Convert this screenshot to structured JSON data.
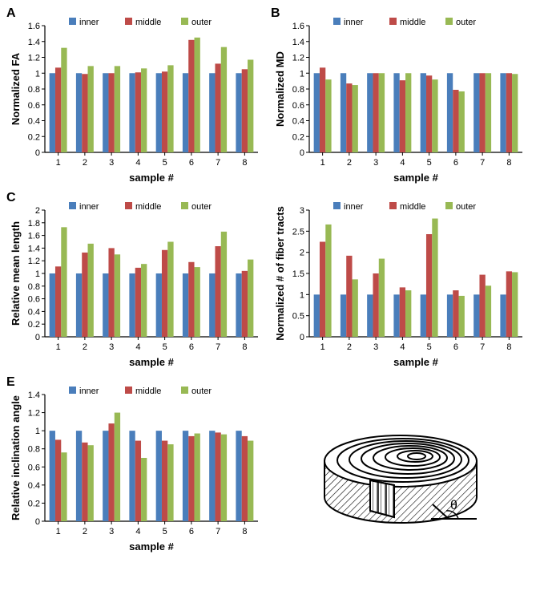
{
  "colors": {
    "inner": "#4a7ebb",
    "middle": "#be4b48",
    "outer": "#98b954",
    "axis": "#000000",
    "bg": "#ffffff"
  },
  "legend_labels": [
    "inner",
    "middle",
    "outer"
  ],
  "xlabel": "sample #",
  "bar_width": 0.22,
  "charts": {
    "A": {
      "label": "A",
      "ylabel": "Normalized FA",
      "ymax": 1.6,
      "ytick_step": 0.2,
      "ymin": 0,
      "categories": [
        1,
        2,
        3,
        4,
        5,
        6,
        7,
        8
      ],
      "series": {
        "inner": [
          1,
          1,
          1,
          1,
          1,
          1,
          1,
          1
        ],
        "middle": [
          1.07,
          0.99,
          1.0,
          1.01,
          1.02,
          1.42,
          1.12,
          1.05
        ],
        "outer": [
          1.32,
          1.09,
          1.09,
          1.06,
          1.1,
          1.45,
          1.33,
          1.17
        ]
      }
    },
    "B": {
      "label": "B",
      "ylabel": "Normalized MD",
      "ymax": 1.6,
      "ytick_step": 0.2,
      "ymin": 0,
      "categories": [
        1,
        2,
        3,
        4,
        5,
        6,
        7,
        8
      ],
      "series": {
        "inner": [
          1,
          1,
          1,
          1,
          1,
          1,
          1,
          1
        ],
        "middle": [
          1.07,
          0.87,
          1.0,
          0.91,
          0.97,
          0.79,
          1.0,
          1.0
        ],
        "outer": [
          0.92,
          0.85,
          1.0,
          1.0,
          0.92,
          0.77,
          1.0,
          0.99
        ]
      }
    },
    "C": {
      "label": "C",
      "ylabel": "Relative mean length",
      "ymax": 2.0,
      "ytick_step": 0.2,
      "ymin": 0,
      "categories": [
        1,
        2,
        3,
        4,
        5,
        6,
        7,
        8
      ],
      "series": {
        "inner": [
          1,
          1,
          1,
          1,
          1,
          1,
          1,
          1
        ],
        "middle": [
          1.11,
          1.33,
          1.4,
          1.09,
          1.37,
          1.18,
          1.43,
          1.04
        ],
        "outer": [
          1.73,
          1.47,
          1.3,
          1.15,
          1.5,
          1.1,
          1.66,
          1.22
        ]
      }
    },
    "D": {
      "label": "",
      "ylabel": "Normalized # of fiber tracts",
      "ymax": 3.0,
      "ytick_step": 0.5,
      "ymin": 0,
      "categories": [
        1,
        2,
        3,
        4,
        5,
        6,
        7,
        8
      ],
      "series": {
        "inner": [
          1,
          1,
          1,
          1,
          1,
          1,
          1,
          1
        ],
        "middle": [
          2.25,
          1.92,
          1.5,
          1.17,
          2.43,
          1.1,
          1.47,
          1.55
        ],
        "outer": [
          2.66,
          1.36,
          1.85,
          1.1,
          2.8,
          0.97,
          1.21,
          1.53
        ]
      }
    },
    "E": {
      "label": "E",
      "ylabel": "Relative inclination angle",
      "ymax": 1.4,
      "ytick_step": 0.2,
      "ymin": 0,
      "categories": [
        1,
        2,
        3,
        4,
        5,
        6,
        7,
        8
      ],
      "series": {
        "inner": [
          1,
          1,
          1,
          1,
          1,
          1,
          1,
          1
        ],
        "middle": [
          0.9,
          0.87,
          1.08,
          0.89,
          0.89,
          0.94,
          0.98,
          0.94
        ],
        "outer": [
          0.76,
          0.84,
          1.2,
          0.7,
          0.85,
          0.97,
          0.96,
          0.89
        ]
      }
    }
  },
  "diagram": {
    "theta_label": "θ"
  }
}
